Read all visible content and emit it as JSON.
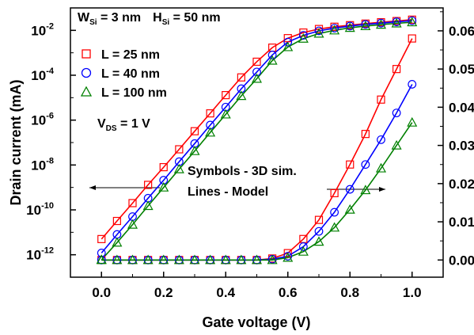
{
  "chart_data": {
    "type": "line",
    "xlabel": "Gate voltage (V)",
    "ylabel": "Drain current (mA)",
    "xlim": [
      -0.1,
      1.1
    ],
    "x_ticks": [
      "0.0",
      "0.2",
      "0.4",
      "0.6",
      "0.8",
      "1.0"
    ],
    "ylim_left_log": [
      1e-13,
      0.1
    ],
    "y_left_ticks": [
      {
        "base": "10",
        "exp": "-12",
        "value": 1e-12
      },
      {
        "base": "10",
        "exp": "-10",
        "value": 1e-10
      },
      {
        "base": "10",
        "exp": "-8",
        "value": 1e-08
      },
      {
        "base": "10",
        "exp": "-6",
        "value": 1e-06
      },
      {
        "base": "10",
        "exp": "-4",
        "value": 0.0001
      },
      {
        "base": "10",
        "exp": "-2",
        "value": 0.01
      }
    ],
    "ylim_right_linear": [
      -0.0045,
      0.066
    ],
    "y_right_ticks": [
      "0.00",
      "0.01",
      "0.02",
      "0.03",
      "0.04",
      "0.05",
      "0.06"
    ],
    "annotations": {
      "dimensions": {
        "w": "W",
        "w_sub": "Si",
        "w_val": " = 3 nm",
        "h": "H",
        "h_sub": "Si",
        "h_val": " = 50 nm"
      },
      "vds": {
        "v": "V",
        "sub": "DS",
        "val": " = 1 V"
      },
      "symbols_note": "Symbols - 3D sim.",
      "lines_note": "Lines - Model"
    },
    "x": [
      0.0,
      0.05,
      0.1,
      0.15,
      0.2,
      0.25,
      0.3,
      0.35,
      0.4,
      0.45,
      0.5,
      0.55,
      0.6,
      0.65,
      0.7,
      0.75,
      0.8,
      0.85,
      0.9,
      0.95,
      1.0
    ],
    "series": [
      {
        "name": "L = 25 nm",
        "color": "#ff0000",
        "marker": "square",
        "log_values": [
          5e-12,
          3.2e-11,
          2e-10,
          1.3e-09,
          8e-09,
          5e-08,
          3.2e-07,
          2e-06,
          1.3e-05,
          8e-05,
          0.0004,
          0.0017,
          0.0045,
          0.008,
          0.0115,
          0.0145,
          0.017,
          0.02,
          0.023,
          0.026,
          0.03
        ],
        "linear_values": [
          0,
          0,
          0,
          0,
          0,
          0,
          0,
          0,
          0,
          0,
          0,
          0.0004,
          0.0018,
          0.0055,
          0.0105,
          0.0175,
          0.025,
          0.033,
          0.042,
          0.05,
          0.058
        ]
      },
      {
        "name": "L = 40 nm",
        "color": "#0000ff",
        "marker": "circle",
        "log_values": [
          1.2e-12,
          8e-12,
          5e-11,
          3.3e-10,
          2.1e-09,
          1.4e-08,
          9e-08,
          6e-07,
          3.8e-06,
          2.5e-05,
          0.00014,
          0.0008,
          0.003,
          0.006,
          0.0095,
          0.0125,
          0.0155,
          0.0185,
          0.021,
          0.024,
          0.027
        ],
        "linear_values": [
          0,
          0,
          0,
          0,
          0,
          0,
          0,
          0,
          0,
          0,
          0,
          0.0002,
          0.001,
          0.0035,
          0.0075,
          0.0125,
          0.0185,
          0.025,
          0.0315,
          0.0385,
          0.046
        ]
      },
      {
        "name": "L = 100 nm",
        "color": "#008000",
        "marker": "triangle",
        "log_values": [
          6e-13,
          3.5e-12,
          2.2e-11,
          1.5e-10,
          1e-09,
          6.5e-09,
          4.2e-08,
          2.8e-07,
          1.8e-06,
          1.2e-05,
          7e-05,
          0.00045,
          0.0018,
          0.0043,
          0.0072,
          0.01,
          0.013,
          0.0155,
          0.018,
          0.0205,
          0.023
        ],
        "linear_values": [
          0,
          0,
          0,
          0,
          0,
          0,
          0,
          0,
          0,
          0,
          0,
          0,
          0.0006,
          0.0022,
          0.0048,
          0.0085,
          0.0132,
          0.0183,
          0.024,
          0.03,
          0.036
        ]
      }
    ]
  }
}
